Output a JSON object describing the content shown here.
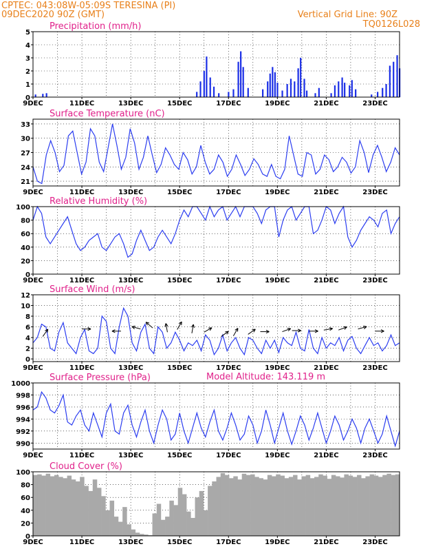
{
  "header": {
    "line1": "CPTEC:   043:08W-05:09S   TERESINA (PI)",
    "line2": "09DEC2020 90Z (GMT)",
    "grid_note": "Vertical Grid Line: 90Z",
    "code": "TQ0126L028",
    "model_altitude": "Model Altitude: 143.119 m"
  },
  "colors": {
    "header": "#e8801a",
    "title": "#e0208a",
    "line": "#2a3cf0",
    "bar": "#1a2ee6",
    "cloud": "#a9a9a9"
  },
  "x_axis": {
    "labels": [
      "9DEC",
      "11DEC",
      "13DEC",
      "15DEC",
      "17DEC",
      "19DEC",
      "21DEC",
      "23DEC"
    ],
    "days": 15
  },
  "chart_data": [
    {
      "id": "precip",
      "type": "bar",
      "title": "Precipitation (mm/h)",
      "ylim": [
        0,
        5
      ],
      "ticks": [
        0,
        1,
        2,
        3,
        4,
        5
      ],
      "events": [
        [
          0.1,
          0.2
        ],
        [
          0.4,
          0.25
        ],
        [
          0.55,
          0.3
        ],
        [
          6.7,
          0.4
        ],
        [
          6.85,
          1.2
        ],
        [
          7.0,
          2.0
        ],
        [
          7.1,
          3.1
        ],
        [
          7.25,
          1.5
        ],
        [
          7.4,
          0.8
        ],
        [
          7.6,
          0.3
        ],
        [
          8.0,
          0.4
        ],
        [
          8.2,
          0.6
        ],
        [
          8.4,
          2.7
        ],
        [
          8.5,
          3.5
        ],
        [
          8.6,
          2.3
        ],
        [
          8.8,
          0.7
        ],
        [
          9.4,
          0.6
        ],
        [
          9.6,
          1.2
        ],
        [
          9.7,
          1.8
        ],
        [
          9.8,
          2.3
        ],
        [
          9.9,
          1.9
        ],
        [
          10.0,
          1.1
        ],
        [
          10.2,
          0.5
        ],
        [
          10.4,
          1.0
        ],
        [
          10.55,
          1.4
        ],
        [
          10.7,
          1.2
        ],
        [
          10.85,
          2.2
        ],
        [
          10.95,
          3.0
        ],
        [
          11.1,
          1.4
        ],
        [
          11.2,
          0.5
        ],
        [
          11.55,
          0.3
        ],
        [
          11.7,
          0.7
        ],
        [
          12.2,
          0.3
        ],
        [
          12.35,
          0.9
        ],
        [
          12.5,
          1.2
        ],
        [
          12.65,
          1.5
        ],
        [
          12.75,
          1.1
        ],
        [
          12.95,
          0.9
        ],
        [
          13.05,
          1.3
        ],
        [
          13.2,
          0.6
        ],
        [
          13.85,
          0.2
        ],
        [
          14.1,
          0.4
        ],
        [
          14.3,
          0.7
        ],
        [
          14.45,
          1.0
        ],
        [
          14.6,
          2.4
        ],
        [
          14.75,
          2.7
        ],
        [
          14.9,
          3.2
        ],
        [
          15.0,
          2.2
        ]
      ]
    },
    {
      "id": "temp",
      "type": "line",
      "title": "Surface Temperature (nC)",
      "ylim": [
        20,
        34
      ],
      "ticks": [
        21,
        24,
        27,
        30,
        33
      ],
      "values": [
        24,
        21,
        20.5,
        26.5,
        29.5,
        27,
        23,
        24.3,
        30.5,
        31.5,
        27,
        22.5,
        25,
        32,
        30.5,
        25,
        23,
        28,
        33,
        28.5,
        23.5,
        26,
        32,
        29,
        23.5,
        26,
        30.5,
        26.5,
        22.8,
        24.5,
        28,
        26.5,
        24.5,
        23.5,
        27,
        25.5,
        22.5,
        24,
        28.5,
        25,
        22.5,
        23.5,
        26.5,
        25,
        22,
        23.5,
        26.5,
        24.5,
        22.2,
        23.5,
        25.7,
        24.5,
        22.5,
        22,
        24.5,
        22,
        21.5,
        23.5,
        30.5,
        26.5,
        22.5,
        22,
        27,
        26.5,
        22.5,
        23.5,
        26.5,
        25.5,
        23,
        24,
        26,
        25,
        22.7,
        24,
        29.5,
        27,
        22.8,
        26.5,
        28.5,
        26,
        23,
        25,
        28,
        26.5
      ]
    },
    {
      "id": "rh",
      "type": "line",
      "title": "Relative Humidity (%)",
      "ylim": [
        0,
        100
      ],
      "ticks": [
        0,
        20,
        40,
        60,
        80,
        100
      ],
      "values": [
        80,
        100,
        90,
        55,
        45,
        55,
        65,
        75,
        85,
        65,
        45,
        35,
        40,
        50,
        55,
        60,
        40,
        35,
        45,
        55,
        60,
        45,
        25,
        30,
        50,
        65,
        50,
        35,
        40,
        55,
        65,
        55,
        45,
        60,
        80,
        95,
        85,
        100,
        100,
        90,
        80,
        100,
        85,
        95,
        100,
        80,
        90,
        100,
        85,
        100,
        100,
        100,
        90,
        75,
        95,
        100,
        100,
        55,
        80,
        95,
        100,
        80,
        90,
        100,
        100,
        60,
        65,
        80,
        100,
        95,
        75,
        90,
        100,
        55,
        40,
        50,
        65,
        75,
        85,
        80,
        70,
        90,
        95,
        60,
        75,
        85
      ]
    },
    {
      "id": "wind",
      "type": "line",
      "title": "Surface Wind (m/s)",
      "ylim": [
        -0.5,
        12
      ],
      "ticks": [
        0,
        2,
        4,
        6,
        8,
        10,
        12
      ],
      "values": [
        3,
        4,
        6.5,
        6,
        2,
        1.5,
        5,
        6.8,
        3,
        2,
        1,
        4,
        5.5,
        1.5,
        1,
        2,
        8,
        7,
        2,
        1,
        6,
        9.5,
        8,
        3,
        1.5,
        5,
        6.5,
        2,
        1,
        6,
        5,
        2,
        3,
        5,
        3.5,
        1.5,
        3,
        2.5,
        3.5,
        1.5,
        4.5,
        3.5,
        0.8,
        2,
        4.5,
        1.5,
        3,
        4,
        2,
        0.8,
        4,
        3.5,
        2,
        1,
        3.5,
        2,
        3.5,
        1.2,
        4,
        3,
        2.5,
        5,
        2,
        1.5,
        5.5,
        2,
        1,
        4,
        2,
        3,
        2.5,
        4,
        1.5,
        3.5,
        4.2,
        2,
        1,
        2.5,
        4,
        2.5,
        3,
        1.5,
        2.5,
        4.5,
        2.5,
        3
      ],
      "arrows": [
        [
          0.4,
          4.2,
          -55
        ],
        [
          2.0,
          5.6,
          0
        ],
        [
          3.6,
          5.2,
          -180
        ],
        [
          4.4,
          5.6,
          -165
        ],
        [
          4.9,
          5.8,
          -140
        ],
        [
          5.5,
          5.0,
          -100
        ],
        [
          5.9,
          5.5,
          -60
        ],
        [
          6.5,
          4.8,
          -80
        ],
        [
          7.0,
          5.0,
          -30
        ],
        [
          7.7,
          4.2,
          -35
        ],
        [
          8.2,
          4.3,
          -60
        ],
        [
          8.8,
          4.6,
          -35
        ],
        [
          9.3,
          5.1,
          0
        ],
        [
          10.2,
          5.1,
          -20
        ],
        [
          10.6,
          5.3,
          0
        ],
        [
          11.3,
          5.2,
          0
        ],
        [
          11.9,
          5.4,
          -10
        ],
        [
          12.5,
          5.4,
          -20
        ],
        [
          13.3,
          5.6,
          -15
        ],
        [
          14.0,
          5.2,
          0
        ]
      ]
    },
    {
      "id": "pres",
      "type": "line",
      "title": "Surface Pressure (hPa)",
      "ylim": [
        989,
        1000
      ],
      "ticks": [
        990,
        992,
        994,
        996,
        998,
        1000
      ],
      "values": [
        995.5,
        996,
        998.5,
        997.5,
        995.5,
        995,
        996.2,
        998,
        993.5,
        993,
        994.5,
        995.5,
        993,
        992,
        995,
        993,
        991,
        995,
        996.5,
        992,
        991.5,
        995,
        996.3,
        993,
        991,
        993.5,
        995.5,
        992,
        990,
        993,
        995.5,
        994,
        990.5,
        991.5,
        995,
        992,
        990,
        992.5,
        995,
        992.5,
        991,
        993.5,
        995.5,
        992,
        990.5,
        992.5,
        995,
        993,
        990.5,
        991.5,
        994.5,
        993,
        990,
        992,
        995.5,
        993,
        990,
        992.5,
        995,
        992,
        989.8,
        992,
        994.5,
        993,
        990.5,
        992.5,
        995,
        992.5,
        990,
        992,
        994.5,
        993,
        990.5,
        992,
        994,
        992.5,
        990,
        992.5,
        994,
        992,
        990,
        991.5,
        994.5,
        992,
        989.5,
        992
      ]
    },
    {
      "id": "cloud",
      "type": "area",
      "title": "Cloud Cover (%)",
      "ylim": [
        0,
        100
      ],
      "ticks": [
        0,
        20,
        40,
        60,
        80,
        100
      ],
      "values": [
        95,
        96,
        94,
        97,
        93,
        95,
        92,
        90,
        94,
        88,
        85,
        92,
        78,
        70,
        88,
        75,
        62,
        40,
        55,
        30,
        22,
        45,
        18,
        10,
        5,
        3,
        2,
        1,
        35,
        50,
        25,
        30,
        55,
        48,
        75,
        65,
        38,
        28,
        60,
        70,
        40,
        78,
        85,
        92,
        98,
        95,
        90,
        93,
        88,
        97,
        95,
        96,
        92,
        90,
        88,
        95,
        93,
        96,
        94,
        90,
        92,
        95,
        88,
        93,
        95,
        90,
        92,
        96,
        94,
        89,
        95,
        93,
        91,
        96,
        94,
        92,
        95,
        90,
        93,
        96,
        94,
        92,
        95,
        97,
        95,
        96
      ]
    }
  ]
}
